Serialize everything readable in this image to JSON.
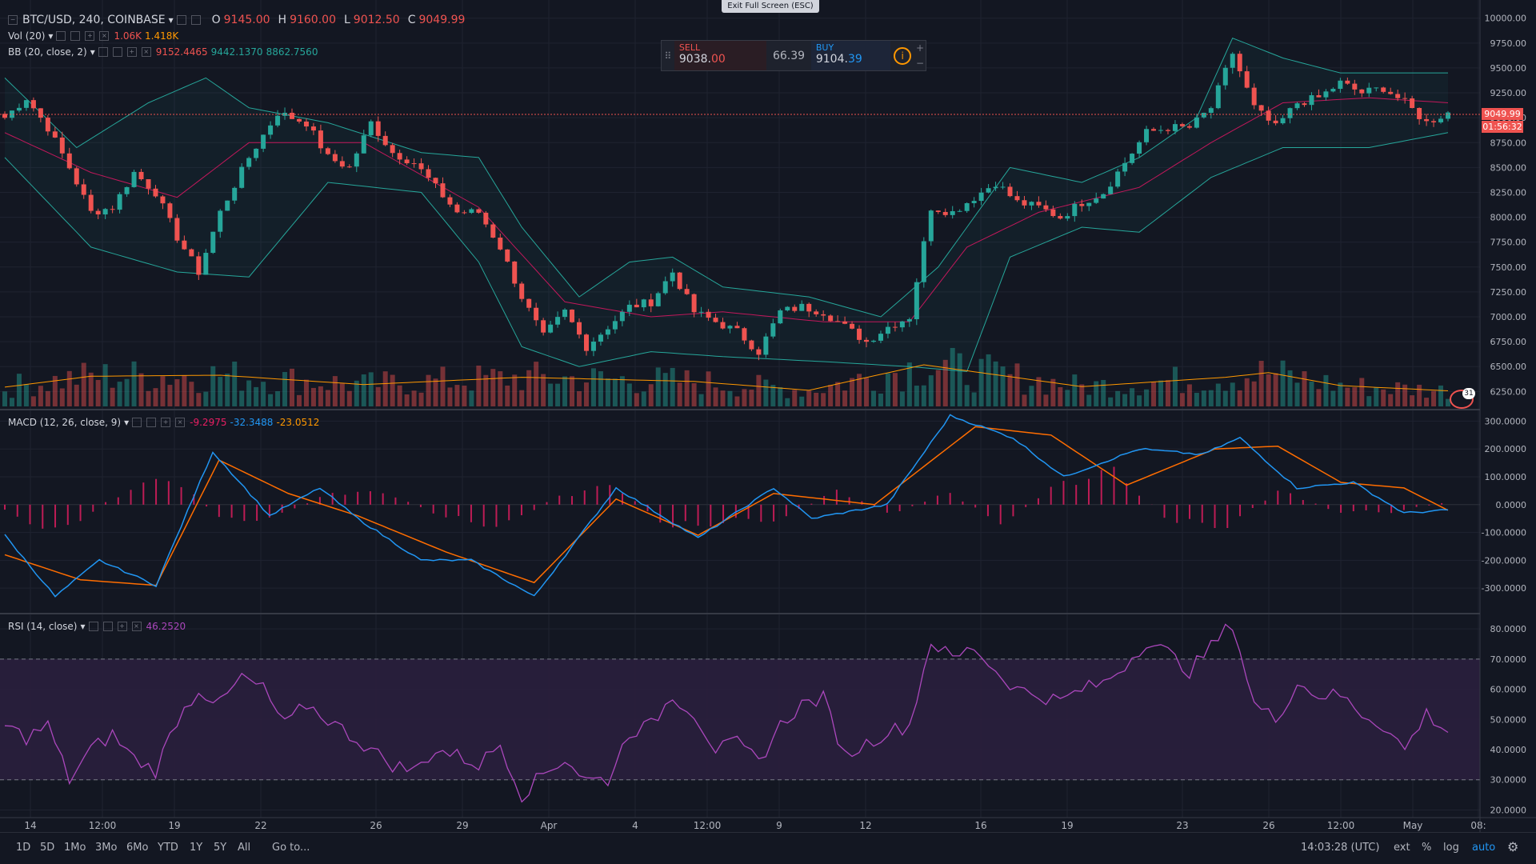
{
  "header": {
    "symbol": "BTC/USD, 240, COINBASE",
    "ohlc": {
      "o_label": "O",
      "o": "9145.00",
      "h_label": "H",
      "h": "9160.00",
      "l_label": "L",
      "l": "9012.50",
      "c_label": "C",
      "c": "9049.99"
    },
    "vol_label": "Vol (20)",
    "vol_values": [
      "1.06K",
      "1.418K"
    ],
    "bb_label": "BB (20, close, 2)",
    "bb_values": [
      "9152.4465",
      "9442.1370",
      "8862.7560"
    ],
    "macd_label": "MACD (12, 26, close, 9)",
    "macd_values": [
      "-9.2975",
      "-32.3488",
      "-23.0512"
    ],
    "rsi_label": "RSI (14, close)",
    "rsi_value": "46.2520",
    "exit_fullscreen": "Exit Full Screen (ESC)"
  },
  "trade_panel": {
    "sell_label": "SELL",
    "sell_price_main": "9038.",
    "sell_price_frac": "00",
    "spread": "66.39",
    "buy_label": "BUY",
    "buy_price_main": "9104.",
    "buy_price_frac": "39",
    "info_icon": "i",
    "plus": "+",
    "minus": "−"
  },
  "price_marker": {
    "price": "9049.99",
    "countdown": "01:56:32"
  },
  "event_badge": "31",
  "bottom_bar": {
    "ranges": [
      "1D",
      "5D",
      "1Mo",
      "3Mo",
      "6Mo",
      "YTD",
      "1Y",
      "5Y",
      "All"
    ],
    "goto": "Go to...",
    "clock": "14:03:28 (UTC)",
    "ext": "ext",
    "percent": "%",
    "log": "log",
    "auto": "auto"
  },
  "colors": {
    "up": "#26a69a",
    "down": "#ef5350",
    "bb_band": "#26a69a",
    "bb_basis": "#c2185b",
    "macd": "#2196f3",
    "signal": "#ff6d00",
    "hist": "#e91e63",
    "rsi": "#ab47bc",
    "rsi_zone": "#2a1f3d",
    "background": "#131722",
    "grid": "#1f2330"
  },
  "chart_data": [
    {
      "type": "candlestick",
      "title": "BTC/USD, 240, COINBASE",
      "y_ticks": [
        "10000.00",
        "9750.00",
        "9500.00",
        "9250.00",
        "9000.00",
        "8750.00",
        "8500.00",
        "8250.00",
        "8000.00",
        "7750.00",
        "7500.00",
        "7250.00",
        "7000.00",
        "6750.00",
        "6500.00",
        "6250.00"
      ],
      "ylim": [
        6100,
        10070
      ],
      "x_ticks": [
        "14",
        "12:00",
        "19",
        "22",
        "26",
        "29",
        "Apr",
        "4",
        "12:00",
        "9",
        "12",
        "16",
        "19",
        "23",
        "26",
        "12:00",
        "May",
        "08:"
      ],
      "close_path": [
        [
          0,
          9000
        ],
        [
          3,
          9200
        ],
        [
          6,
          8900
        ],
        [
          9,
          8500
        ],
        [
          12,
          8050
        ],
        [
          15,
          8100
        ],
        [
          18,
          8450
        ],
        [
          21,
          8250
        ],
        [
          24,
          7800
        ],
        [
          27,
          7450
        ],
        [
          30,
          8050
        ],
        [
          34,
          8600
        ],
        [
          38,
          9050
        ],
        [
          42,
          8950
        ],
        [
          45,
          8600
        ],
        [
          48,
          8500
        ],
        [
          51,
          8950
        ],
        [
          54,
          8650
        ],
        [
          57,
          8550
        ],
        [
          60,
          8300
        ],
        [
          63,
          8050
        ],
        [
          66,
          8050
        ],
        [
          69,
          7700
        ],
        [
          72,
          7200
        ],
        [
          75,
          6800
        ],
        [
          78,
          7050
        ],
        [
          81,
          6700
        ],
        [
          84,
          6900
        ],
        [
          87,
          7100
        ],
        [
          90,
          7150
        ],
        [
          93,
          7450
        ],
        [
          96,
          7050
        ],
        [
          99,
          6950
        ],
        [
          102,
          6850
        ],
        [
          105,
          6650
        ],
        [
          108,
          7050
        ],
        [
          111,
          7100
        ],
        [
          114,
          7050
        ],
        [
          117,
          6900
        ],
        [
          120,
          6750
        ],
        [
          123,
          6900
        ],
        [
          126,
          7000
        ],
        [
          129,
          8100
        ],
        [
          132,
          8050
        ],
        [
          135,
          8200
        ],
        [
          138,
          8350
        ],
        [
          141,
          8150
        ],
        [
          144,
          8100
        ],
        [
          147,
          8000
        ],
        [
          150,
          8150
        ],
        [
          153,
          8250
        ],
        [
          156,
          8550
        ],
        [
          159,
          8850
        ],
        [
          162,
          8900
        ],
        [
          165,
          8900
        ],
        [
          168,
          9100
        ],
        [
          171,
          9650
        ],
        [
          174,
          9100
        ],
        [
          177,
          8900
        ],
        [
          180,
          9150
        ],
        [
          183,
          9200
        ],
        [
          186,
          9350
        ],
        [
          189,
          9250
        ],
        [
          192,
          9300
        ],
        [
          195,
          9150
        ],
        [
          198,
          8950
        ],
        [
          201,
          9050
        ]
      ],
      "volume_path": [
        [
          0,
          370
        ],
        [
          12,
          580
        ],
        [
          30,
          600
        ],
        [
          50,
          420
        ],
        [
          72,
          560
        ],
        [
          84,
          520
        ],
        [
          96,
          480
        ],
        [
          112,
          310
        ],
        [
          128,
          800
        ],
        [
          150,
          380
        ],
        [
          170,
          560
        ],
        [
          176,
          650
        ],
        [
          186,
          400
        ],
        [
          201,
          300
        ]
      ],
      "bb_upper_path": [
        [
          0,
          9400
        ],
        [
          10,
          8700
        ],
        [
          20,
          9150
        ],
        [
          28,
          9400
        ],
        [
          34,
          9100
        ],
        [
          45,
          8950
        ],
        [
          58,
          8650
        ],
        [
          66,
          8600
        ],
        [
          72,
          7900
        ],
        [
          80,
          7200
        ],
        [
          87,
          7550
        ],
        [
          93,
          7600
        ],
        [
          100,
          7300
        ],
        [
          112,
          7200
        ],
        [
          122,
          7000
        ],
        [
          130,
          7500
        ],
        [
          140,
          8500
        ],
        [
          150,
          8350
        ],
        [
          158,
          8600
        ],
        [
          166,
          9000
        ],
        [
          171,
          9800
        ],
        [
          178,
          9600
        ],
        [
          186,
          9450
        ],
        [
          201,
          9450
        ]
      ],
      "bb_basis_path": [
        [
          0,
          8850
        ],
        [
          12,
          8450
        ],
        [
          24,
          8200
        ],
        [
          34,
          8750
        ],
        [
          50,
          8750
        ],
        [
          66,
          8100
        ],
        [
          78,
          7150
        ],
        [
          90,
          7000
        ],
        [
          100,
          7050
        ],
        [
          114,
          6950
        ],
        [
          126,
          6950
        ],
        [
          134,
          7700
        ],
        [
          144,
          8050
        ],
        [
          158,
          8300
        ],
        [
          168,
          8750
        ],
        [
          178,
          9150
        ],
        [
          190,
          9200
        ],
        [
          201,
          9150
        ]
      ],
      "bb_lower_path": [
        [
          0,
          8600
        ],
        [
          12,
          7700
        ],
        [
          24,
          7450
        ],
        [
          34,
          7400
        ],
        [
          45,
          8350
        ],
        [
          58,
          8250
        ],
        [
          66,
          7550
        ],
        [
          72,
          6700
        ],
        [
          80,
          6500
        ],
        [
          90,
          6650
        ],
        [
          100,
          6600
        ],
        [
          114,
          6550
        ],
        [
          126,
          6500
        ],
        [
          134,
          6450
        ],
        [
          140,
          7600
        ],
        [
          150,
          7900
        ],
        [
          158,
          7850
        ],
        [
          168,
          8400
        ],
        [
          178,
          8700
        ],
        [
          190,
          8700
        ],
        [
          201,
          8850
        ]
      ],
      "volume_ylim": [
        0,
        2000
      ]
    },
    {
      "type": "line",
      "title": "MACD (12, 26, close, 9)",
      "y_ticks": [
        "300.0000",
        "200.0000",
        "100.0000",
        "0.0000",
        "-100.0000",
        "-200.0000",
        "-300.0000"
      ],
      "ylim": [
        -380,
        330
      ],
      "macd_path": [
        [
          0,
          -110
        ],
        [
          8,
          -330
        ],
        [
          15,
          -200
        ],
        [
          24,
          -290
        ],
        [
          33,
          190
        ],
        [
          42,
          -40
        ],
        [
          50,
          60
        ],
        [
          56,
          -50
        ],
        [
          66,
          -200
        ],
        [
          74,
          -200
        ],
        [
          84,
          -330
        ],
        [
          97,
          60
        ],
        [
          110,
          -120
        ],
        [
          122,
          60
        ],
        [
          128,
          -50
        ],
        [
          140,
          0
        ],
        [
          150,
          320
        ],
        [
          160,
          240
        ],
        [
          168,
          100
        ],
        [
          180,
          200
        ],
        [
          190,
          180
        ],
        [
          196,
          240
        ],
        [
          205,
          60
        ],
        [
          214,
          80
        ],
        [
          222,
          -30
        ],
        [
          229,
          -20
        ]
      ],
      "signal_path": [
        [
          0,
          -180
        ],
        [
          12,
          -270
        ],
        [
          24,
          -290
        ],
        [
          34,
          160
        ],
        [
          45,
          40
        ],
        [
          56,
          -40
        ],
        [
          70,
          -170
        ],
        [
          84,
          -280
        ],
        [
          97,
          20
        ],
        [
          110,
          -110
        ],
        [
          122,
          40
        ],
        [
          138,
          0
        ],
        [
          154,
          280
        ],
        [
          166,
          250
        ],
        [
          178,
          70
        ],
        [
          192,
          200
        ],
        [
          202,
          210
        ],
        [
          212,
          80
        ],
        [
          222,
          60
        ],
        [
          229,
          -20
        ]
      ],
      "hist_values": [
        -30,
        -120,
        40,
        120,
        -80,
        -40,
        60,
        40,
        -60,
        -90,
        40,
        80,
        -100,
        -70,
        -60,
        60,
        -40,
        50,
        -80,
        90,
        140,
        -70,
        -90,
        60,
        -30,
        -30,
        10
      ]
    },
    {
      "type": "line",
      "title": "RSI (14, close)",
      "y_ticks": [
        "80.0000",
        "70.0000",
        "60.0000",
        "50.0000",
        "40.0000",
        "30.0000",
        "20.0000"
      ],
      "ylim": [
        18,
        84
      ],
      "band": [
        30,
        70
      ],
      "rsi_path": [
        [
          0,
          48
        ],
        [
          3,
          44
        ],
        [
          6,
          48
        ],
        [
          9,
          30
        ],
        [
          12,
          40
        ],
        [
          15,
          45
        ],
        [
          18,
          37
        ],
        [
          21,
          33
        ],
        [
          24,
          50
        ],
        [
          27,
          60
        ],
        [
          30,
          55
        ],
        [
          33,
          64
        ],
        [
          36,
          60
        ],
        [
          39,
          48
        ],
        [
          42,
          55
        ],
        [
          45,
          50
        ],
        [
          48,
          45
        ],
        [
          51,
          40
        ],
        [
          54,
          35
        ],
        [
          57,
          33
        ],
        [
          60,
          40
        ],
        [
          63,
          38
        ],
        [
          66,
          35
        ],
        [
          69,
          42
        ],
        [
          72,
          25
        ],
        [
          75,
          32
        ],
        [
          78,
          37
        ],
        [
          81,
          30
        ],
        [
          84,
          30
        ],
        [
          87,
          46
        ],
        [
          90,
          48
        ],
        [
          93,
          58
        ],
        [
          96,
          52
        ],
        [
          99,
          40
        ],
        [
          102,
          42
        ],
        [
          105,
          36
        ],
        [
          108,
          48
        ],
        [
          111,
          55
        ],
        [
          114,
          57
        ],
        [
          117,
          38
        ],
        [
          120,
          42
        ],
        [
          123,
          46
        ],
        [
          126,
          48
        ],
        [
          129,
          76
        ],
        [
          132,
          70
        ],
        [
          135,
          74
        ],
        [
          138,
          66
        ],
        [
          141,
          60
        ],
        [
          144,
          58
        ],
        [
          147,
          56
        ],
        [
          150,
          60
        ],
        [
          153,
          62
        ],
        [
          156,
          68
        ],
        [
          159,
          76
        ],
        [
          162,
          72
        ],
        [
          165,
          66
        ],
        [
          168,
          74
        ],
        [
          171,
          82
        ],
        [
          174,
          55
        ],
        [
          177,
          50
        ],
        [
          180,
          62
        ],
        [
          183,
          58
        ],
        [
          186,
          58
        ],
        [
          189,
          52
        ],
        [
          192,
          48
        ],
        [
          195,
          40
        ],
        [
          198,
          52
        ],
        [
          201,
          46
        ]
      ]
    }
  ]
}
